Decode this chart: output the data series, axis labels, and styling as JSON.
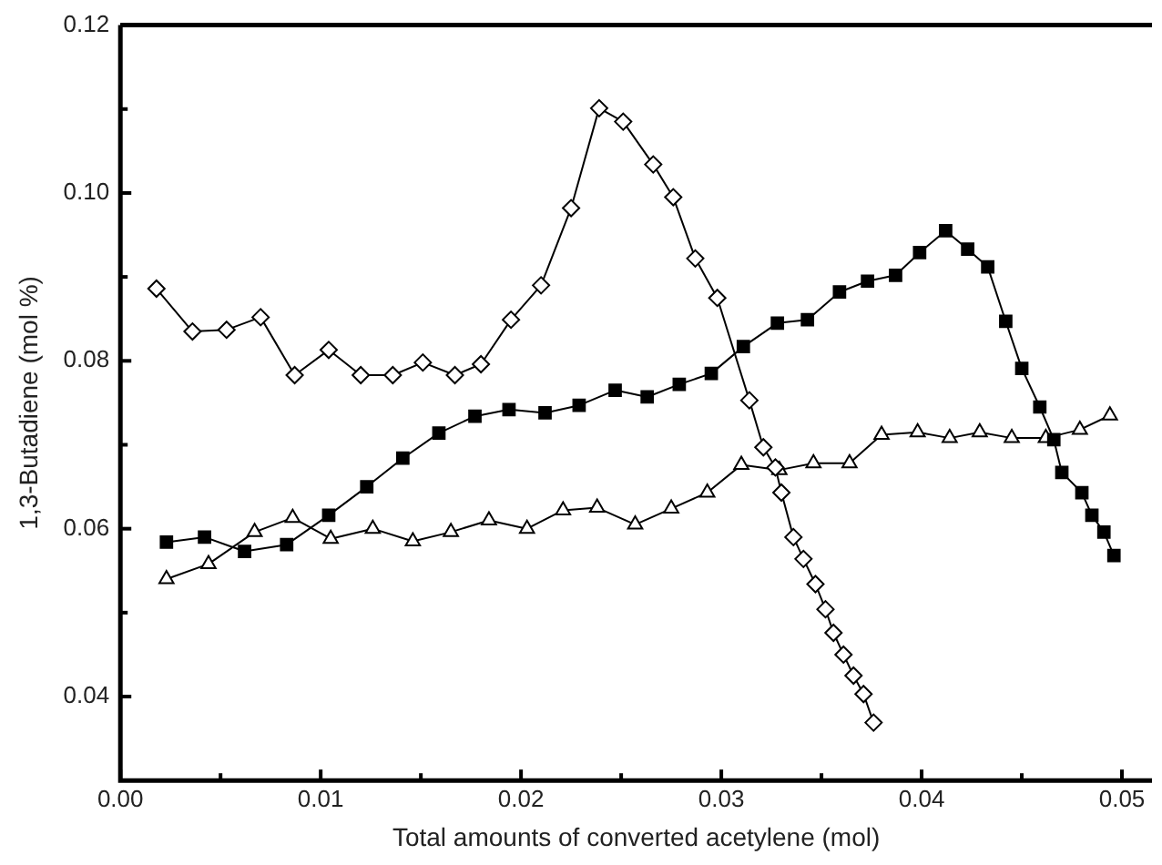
{
  "chart_data": {
    "type": "line",
    "xlabel": "Total amounts of converted acetylene (mol)",
    "ylabel": "1,3-Butadiene (mol %)",
    "xlim": [
      0,
      0.0515
    ],
    "ylim": [
      0.03,
      0.12
    ],
    "xticks": [
      {
        "value": 0,
        "label": "0.00"
      },
      {
        "value": 0.005,
        "label": null
      },
      0.01,
      {
        "value": 0.015,
        "label": null
      },
      0.02,
      {
        "value": 0.025,
        "label": null
      },
      0.03,
      {
        "value": 0.035,
        "label": null
      },
      0.04,
      {
        "value": 0.045,
        "label": null
      },
      0.05
    ],
    "yticks": [
      0.04,
      {
        "value": 0.05,
        "label": null
      },
      0.06,
      {
        "value": 0.07,
        "label": null
      },
      0.08,
      {
        "value": 0.09,
        "label": null
      },
      {
        "value": 0.1,
        "label": "0.10"
      },
      {
        "value": 0.11,
        "label": null
      },
      0.12
    ],
    "grid": false,
    "legend": false,
    "series": [
      {
        "color": "#000000",
        "marker": "diamond",
        "x": [
          0.0018,
          0.0036,
          0.0053,
          0.007,
          0.0087,
          0.0104,
          0.012,
          0.0136,
          0.0151,
          0.0167,
          0.018,
          0.0195,
          0.021,
          0.0225,
          0.0239,
          0.0251,
          0.0266,
          0.0276,
          0.0287,
          0.0298,
          0.0314,
          0.0321,
          0.0327,
          0.033,
          0.0336,
          0.0341,
          0.0347,
          0.0352,
          0.0356,
          0.0361,
          0.0366,
          0.0371,
          0.0376
        ],
        "values": [
          0.0886,
          0.0835,
          0.0837,
          0.0852,
          0.0783,
          0.0813,
          0.0783,
          0.0783,
          0.0798,
          0.0783,
          0.0796,
          0.0849,
          0.089,
          0.0982,
          0.1101,
          0.1085,
          0.1034,
          0.0995,
          0.0922,
          0.0875,
          0.0753,
          0.0697,
          0.0673,
          0.0643,
          0.059,
          0.0564,
          0.0534,
          0.0504,
          0.0476,
          0.045,
          0.0425,
          0.0403,
          0.0369
        ]
      },
      {
        "color": "#000000",
        "marker": "square",
        "x": [
          0.0023,
          0.0042,
          0.0062,
          0.0083,
          0.0104,
          0.0123,
          0.0141,
          0.0159,
          0.0177,
          0.0194,
          0.0212,
          0.0229,
          0.0247,
          0.0263,
          0.0279,
          0.0295,
          0.0311,
          0.0328,
          0.0343,
          0.0359,
          0.0373,
          0.0387,
          0.0399,
          0.0412,
          0.0423,
          0.0433,
          0.0442,
          0.045,
          0.0459,
          0.0466,
          0.047,
          0.048,
          0.0485,
          0.0491,
          0.0496
        ],
        "values": [
          0.0584,
          0.059,
          0.0573,
          0.0581,
          0.0616,
          0.065,
          0.0684,
          0.0714,
          0.0734,
          0.0742,
          0.0738,
          0.0747,
          0.0765,
          0.0757,
          0.0772,
          0.0785,
          0.0817,
          0.0845,
          0.0849,
          0.0882,
          0.0895,
          0.0902,
          0.0929,
          0.0955,
          0.0933,
          0.0912,
          0.0847,
          0.0791,
          0.0745,
          0.0706,
          0.0667,
          0.0643,
          0.0616,
          0.0596,
          0.0568
        ]
      },
      {
        "color": "#000000",
        "marker": "triangle",
        "x": [
          0.0023,
          0.0044,
          0.0067,
          0.0086,
          0.0105,
          0.0126,
          0.0146,
          0.0165,
          0.0184,
          0.0203,
          0.0221,
          0.0238,
          0.0257,
          0.0275,
          0.0293,
          0.031,
          0.0329,
          0.0346,
          0.0364,
          0.038,
          0.0398,
          0.0414,
          0.0429,
          0.0445,
          0.0462,
          0.0479,
          0.0494
        ],
        "values": [
          0.054,
          0.0558,
          0.0596,
          0.0613,
          0.0588,
          0.06,
          0.0585,
          0.0596,
          0.061,
          0.06,
          0.0622,
          0.0625,
          0.0605,
          0.0624,
          0.0643,
          0.0676,
          0.067,
          0.0678,
          0.0678,
          0.0712,
          0.0715,
          0.0708,
          0.0715,
          0.0708,
          0.0708,
          0.0718,
          0.0735
        ]
      }
    ]
  }
}
